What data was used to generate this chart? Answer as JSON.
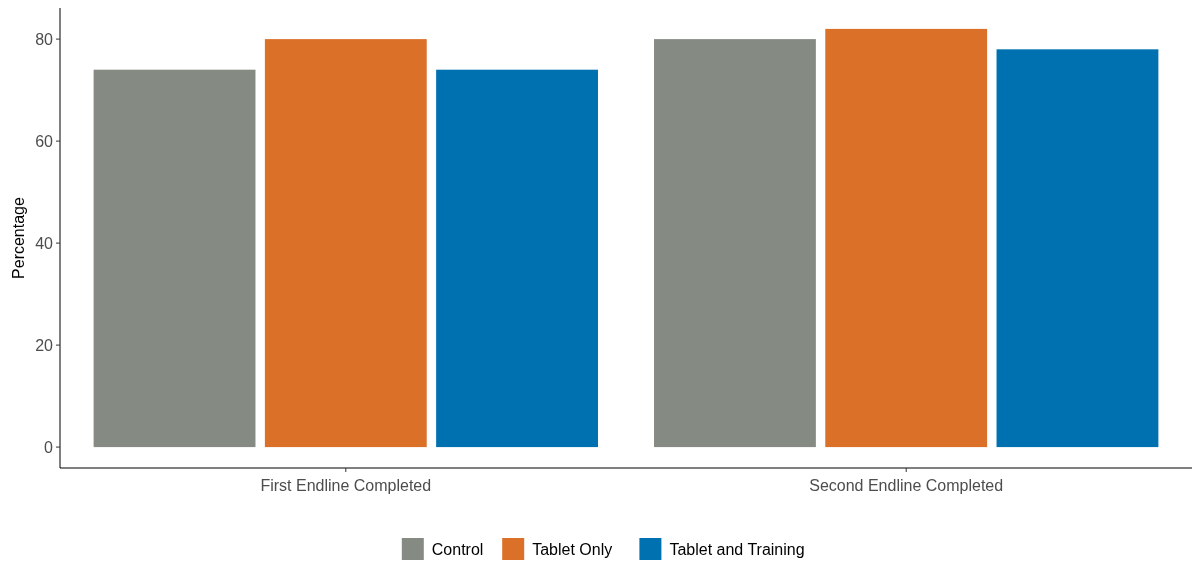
{
  "chart_data": {
    "type": "bar",
    "ylabel": "Percentage",
    "categories": [
      "First Endline Completed",
      "Second Endline Completed"
    ],
    "series": [
      {
        "name": "Control",
        "color": "#858a83",
        "values": [
          74,
          80
        ]
      },
      {
        "name": "Tablet Only",
        "color": "#db7029",
        "values": [
          80,
          82
        ]
      },
      {
        "name": "Tablet and Training",
        "color": "#0071b0",
        "values": [
          74,
          78
        ]
      }
    ],
    "ylim": [
      -4.1,
      86.1
    ],
    "yticks": [
      0,
      20,
      40,
      60,
      80
    ],
    "grid": false,
    "legend": "bottom"
  }
}
